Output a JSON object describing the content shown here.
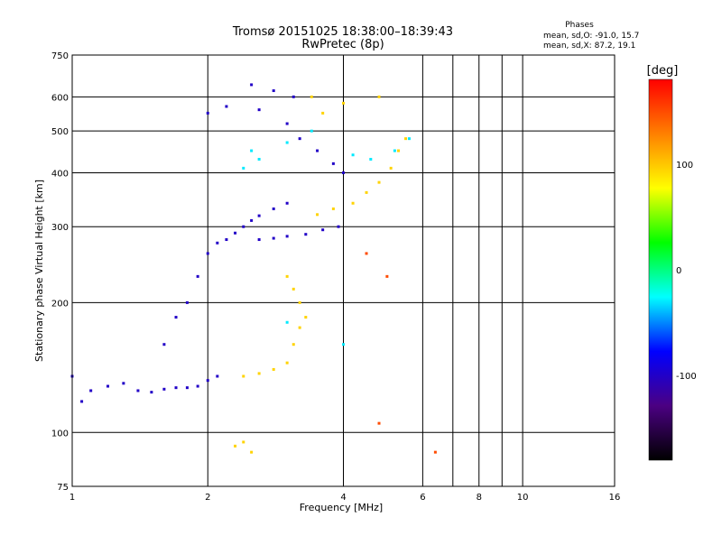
{
  "header": {
    "title_line1": "Tromsø 20151025 18:38:00–18:39:43",
    "title_line2": "RwPretec (8p)"
  },
  "stats": {
    "heading": "Phases",
    "line_o": "mean, sd,O: -91.0, 15.7",
    "line_x": "mean, sd,X:  87.2, 19.1"
  },
  "chart_data": {
    "type": "scatter",
    "xlabel": "Frequency [MHz]",
    "ylabel": "Stationary phase Virtual Height [km]",
    "x_scale": "log",
    "y_scale": "log",
    "xlim": [
      1,
      16
    ],
    "ylim": [
      75,
      750
    ],
    "x_ticks": [
      1,
      2,
      4,
      6,
      8,
      10,
      16
    ],
    "x_tick_labels": [
      "1",
      "2",
      "4",
      "6",
      "8",
      "10",
      "16"
    ],
    "x_gridlines": [
      2,
      4,
      6,
      7,
      8,
      9,
      10
    ],
    "y_ticks": [
      75,
      100,
      200,
      300,
      400,
      500,
      600,
      750
    ],
    "y_tick_labels": [
      "75",
      "100",
      "200",
      "300",
      "400",
      "500",
      "600",
      "750"
    ],
    "y_gridlines": [
      100,
      200,
      300,
      400,
      500,
      600
    ],
    "grid": true,
    "colorbar": {
      "label": "[deg]",
      "range": [
        -180,
        180
      ],
      "ticks": [
        100,
        0,
        -100
      ],
      "tick_labels": [
        "100",
        "0",
        "-100"
      ],
      "colors": [
        "#000000",
        "#4b0082",
        "#0000ff",
        "#00ffff",
        "#00ff00",
        "#ffff00",
        "#ff8000",
        "#ff0000"
      ]
    },
    "series": [
      {
        "phase_deg": -100,
        "points": [
          [
            1.0,
            135
          ],
          [
            1.05,
            118
          ],
          [
            1.1,
            125
          ],
          [
            1.2,
            128
          ],
          [
            1.3,
            130
          ],
          [
            1.4,
            125
          ],
          [
            1.5,
            124
          ],
          [
            1.6,
            126
          ],
          [
            1.7,
            127
          ],
          [
            1.8,
            127
          ],
          [
            1.9,
            128
          ],
          [
            2.0,
            132
          ],
          [
            2.1,
            135
          ],
          [
            1.6,
            160
          ],
          [
            1.7,
            185
          ],
          [
            1.8,
            200
          ],
          [
            1.9,
            230
          ],
          [
            2.0,
            260
          ],
          [
            2.1,
            275
          ],
          [
            2.2,
            280
          ],
          [
            2.3,
            290
          ],
          [
            2.4,
            300
          ],
          [
            2.5,
            310
          ],
          [
            2.6,
            318
          ],
          [
            2.8,
            330
          ],
          [
            3.0,
            340
          ],
          [
            2.0,
            550
          ],
          [
            2.2,
            570
          ],
          [
            2.6,
            560
          ],
          [
            3.0,
            520
          ],
          [
            3.2,
            480
          ],
          [
            3.5,
            450
          ],
          [
            3.8,
            420
          ],
          [
            4.0,
            400
          ],
          [
            2.6,
            280
          ],
          [
            2.8,
            282
          ],
          [
            3.0,
            285
          ],
          [
            3.3,
            288
          ],
          [
            3.6,
            295
          ],
          [
            3.9,
            300
          ],
          [
            2.5,
            640
          ],
          [
            2.8,
            620
          ],
          [
            3.1,
            600
          ]
        ]
      },
      {
        "phase_deg": -30,
        "points": [
          [
            2.5,
            450
          ],
          [
            2.6,
            430
          ],
          [
            2.4,
            410
          ],
          [
            3.0,
            470
          ],
          [
            3.4,
            500
          ],
          [
            4.2,
            440
          ],
          [
            4.6,
            430
          ],
          [
            5.2,
            450
          ],
          [
            5.6,
            480
          ],
          [
            4.0,
            160
          ],
          [
            3.0,
            180
          ]
        ]
      },
      {
        "phase_deg": 95,
        "points": [
          [
            2.4,
            135
          ],
          [
            2.6,
            137
          ],
          [
            2.8,
            140
          ],
          [
            3.0,
            145
          ],
          [
            3.1,
            160
          ],
          [
            3.2,
            175
          ],
          [
            3.3,
            185
          ],
          [
            3.2,
            200
          ],
          [
            3.1,
            215
          ],
          [
            3.0,
            230
          ],
          [
            3.5,
            320
          ],
          [
            3.8,
            330
          ],
          [
            4.2,
            340
          ],
          [
            4.5,
            360
          ],
          [
            4.8,
            380
          ],
          [
            5.1,
            410
          ],
          [
            5.3,
            450
          ],
          [
            5.5,
            480
          ],
          [
            3.4,
            600
          ],
          [
            3.6,
            550
          ],
          [
            4.0,
            580
          ],
          [
            4.8,
            600
          ],
          [
            2.3,
            93
          ],
          [
            2.4,
            95
          ],
          [
            2.5,
            90
          ]
        ]
      },
      {
        "phase_deg": 150,
        "points": [
          [
            4.5,
            260
          ],
          [
            5.0,
            230
          ],
          [
            6.4,
            90
          ],
          [
            4.8,
            105
          ]
        ]
      }
    ]
  }
}
